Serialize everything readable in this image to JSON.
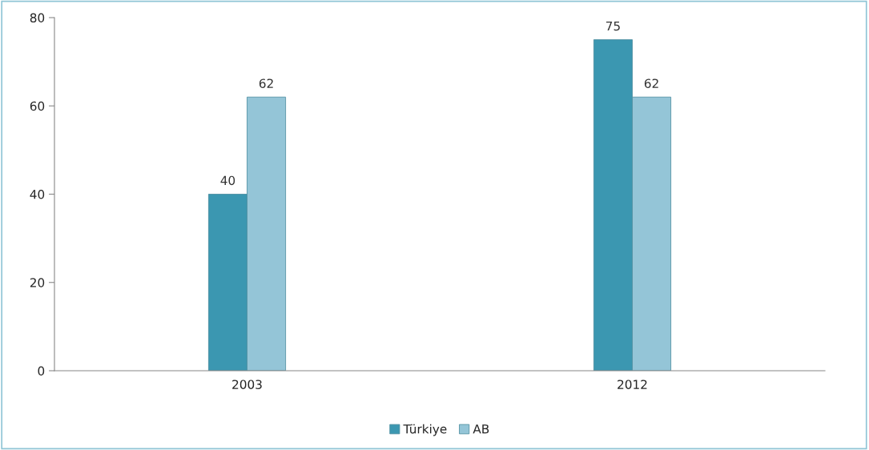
{
  "chart_data": {
    "type": "bar",
    "categories": [
      "2003",
      "2012"
    ],
    "series": [
      {
        "name": "Türkiye",
        "color": "#3b97b1",
        "values": [
          40,
          75
        ]
      },
      {
        "name": "AB",
        "color": "#94c5d7",
        "values": [
          62,
          62
        ]
      }
    ],
    "ylim": [
      0,
      80
    ],
    "yticks": [
      0,
      20,
      40,
      60,
      80
    ],
    "data_labels": true,
    "grid": false,
    "legend": "bottom"
  }
}
